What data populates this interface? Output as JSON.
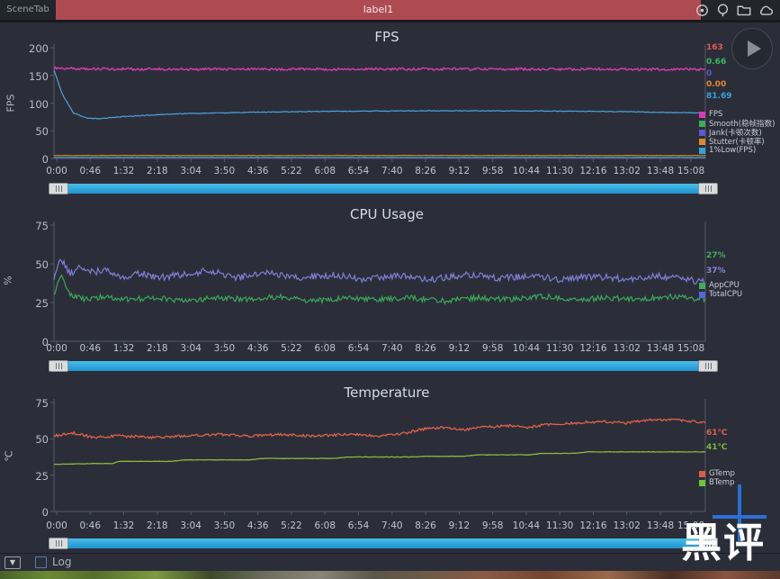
{
  "topbar": {
    "tab": "SceneTab",
    "scene_label": "label1",
    "icons": [
      "map-pin-icon",
      "location-icon",
      "folder-icon",
      "cloud-icon"
    ]
  },
  "colors": {
    "background": "#2b2e39",
    "accent_red": "#ad4a52",
    "scrollbar_blue": "#2aa2d8"
  },
  "chart_data": [
    {
      "type": "line",
      "title": "FPS",
      "ylabel": "FPS",
      "ylim": [
        0,
        200
      ],
      "ymax": 200,
      "yticks": [
        200,
        150,
        100,
        50,
        0
      ],
      "xticks": [
        "0:00",
        "0:46",
        "1:32",
        "2:18",
        "3:04",
        "3:50",
        "4:36",
        "5:22",
        "6:08",
        "6:54",
        "7:40",
        "8:26",
        "9:12",
        "9:58",
        "10:44",
        "11:30",
        "12:16",
        "13:02",
        "13:48"
      ],
      "xtick_end": "15:08",
      "legend_position": "right",
      "values": [
        {
          "text": "163",
          "color": "#e05a54"
        },
        {
          "text": "0.66",
          "color": "#3cb860"
        },
        {
          "text": "0",
          "color": "#5a58d8"
        },
        {
          "text": "0.00",
          "color": "#e08830"
        },
        {
          "text": "81.69",
          "color": "#38a0d8"
        }
      ],
      "legend": [
        {
          "label": "FPS",
          "color": "#d93cb5"
        },
        {
          "label": "Smooth(稳帧指数)",
          "color": "#3cb054"
        },
        {
          "label": "Jank(卡顿次数)",
          "color": "#5a58d8"
        },
        {
          "label": "Stutter(卡顿率)",
          "color": "#e08830"
        },
        {
          "label": "1%Low(FPS)",
          "color": "#38a0d8"
        }
      ],
      "series": [
        {
          "name": "Smooth",
          "color": "#3cb054",
          "width": 1.0,
          "jitter": 0.3,
          "points": [
            [
              0,
              2.5
            ],
            [
              1,
              2.5
            ]
          ]
        },
        {
          "name": "Jank",
          "color": "#5a58d8",
          "width": 1.0,
          "jitter": 0.2,
          "points": [
            [
              0,
              1
            ],
            [
              1,
              1
            ]
          ]
        },
        {
          "name": "Stutter",
          "color": "#e08830",
          "width": 1.0,
          "jitter": 0.4,
          "points": [
            [
              0,
              5.5
            ],
            [
              1,
              5.5
            ]
          ]
        },
        {
          "name": "1%Low",
          "color": "#4aa4e0",
          "width": 1.2,
          "jitter": 0.6,
          "points": [
            [
              0,
              160
            ],
            [
              0.012,
              118
            ],
            [
              0.03,
              82
            ],
            [
              0.05,
              73
            ],
            [
              0.07,
              72
            ],
            [
              0.1,
              75
            ],
            [
              0.14,
              78
            ],
            [
              0.2,
              81
            ],
            [
              0.28,
              83
            ],
            [
              0.4,
              85
            ],
            [
              0.55,
              86
            ],
            [
              0.7,
              86
            ],
            [
              0.85,
              85
            ],
            [
              1,
              82
            ]
          ]
        },
        {
          "name": "FPS",
          "color": "#d93cb5",
          "width": 1.4,
          "jitter": 2.2,
          "points": [
            [
              0,
              163
            ],
            [
              0.05,
              161.5
            ],
            [
              0.3,
              161
            ],
            [
              0.6,
              161.5
            ],
            [
              1,
              161
            ]
          ]
        }
      ]
    },
    {
      "type": "line",
      "title": "CPU Usage",
      "ylabel": "%",
      "ylim": [
        0,
        75
      ],
      "ymax": 75,
      "yticks": [
        75,
        50,
        25,
        0
      ],
      "xticks": [
        "0:00",
        "0:46",
        "1:32",
        "2:18",
        "3:04",
        "3:50",
        "4:36",
        "5:22",
        "6:08",
        "6:54",
        "7:40",
        "8:26",
        "9:12",
        "9:58",
        "10:44",
        "11:30",
        "12:16",
        "13:02",
        "13:48"
      ],
      "xtick_end": "15:08",
      "legend_position": "right",
      "values": [
        {
          "text": "27%",
          "color": "#3db05c"
        },
        {
          "text": "37%",
          "color": "#8884d8"
        }
      ],
      "legend": [
        {
          "label": "AppCPU",
          "color": "#3cb054"
        },
        {
          "label": "TotalCPU",
          "color": "#5568d8"
        }
      ],
      "series": [
        {
          "name": "TotalCPU",
          "color": "#7f7fd6",
          "width": 1.2,
          "jitter": 2.2,
          "points": [
            [
              0,
              40
            ],
            [
              0.01,
              54
            ],
            [
              0.025,
              43
            ],
            [
              0.04,
              49
            ],
            [
              0.06,
              44
            ],
            [
              0.08,
              47
            ],
            [
              0.1,
              41
            ],
            [
              0.13,
              44
            ],
            [
              0.16,
              41
            ],
            [
              0.2,
              43
            ],
            [
              0.24,
              46
            ],
            [
              0.28,
              41
            ],
            [
              0.33,
              44
            ],
            [
              0.38,
              41
            ],
            [
              0.43,
              43
            ],
            [
              0.48,
              40
            ],
            [
              0.53,
              42
            ],
            [
              0.58,
              40
            ],
            [
              0.63,
              43
            ],
            [
              0.68,
              41
            ],
            [
              0.73,
              42
            ],
            [
              0.78,
              40
            ],
            [
              0.83,
              42
            ],
            [
              0.88,
              40
            ],
            [
              0.93,
              42
            ],
            [
              1,
              38
            ]
          ]
        },
        {
          "name": "AppCPU",
          "color": "#3aa85a",
          "width": 1.2,
          "jitter": 1.8,
          "points": [
            [
              0,
              30
            ],
            [
              0.01,
              43
            ],
            [
              0.025,
              30
            ],
            [
              0.05,
              27
            ],
            [
              0.08,
              29
            ],
            [
              0.12,
              27
            ],
            [
              0.16,
              28
            ],
            [
              0.2,
              26
            ],
            [
              0.25,
              28
            ],
            [
              0.3,
              27
            ],
            [
              0.35,
              29
            ],
            [
              0.4,
              26
            ],
            [
              0.45,
              28
            ],
            [
              0.5,
              27
            ],
            [
              0.55,
              28
            ],
            [
              0.6,
              26
            ],
            [
              0.65,
              28
            ],
            [
              0.7,
              27
            ],
            [
              0.75,
              29
            ],
            [
              0.8,
              27
            ],
            [
              0.85,
              28
            ],
            [
              0.9,
              27
            ],
            [
              0.95,
              29
            ],
            [
              1,
              27
            ]
          ]
        }
      ]
    },
    {
      "type": "line",
      "title": "Temperature",
      "ylabel": "℃",
      "ylim": [
        0,
        75
      ],
      "ymax": 75,
      "yticks": [
        75,
        50,
        25,
        0
      ],
      "xticks": [
        "0:00",
        "0:46",
        "1:32",
        "2:18",
        "3:04",
        "3:50",
        "4:36",
        "5:22",
        "6:08",
        "6:54",
        "7:40",
        "8:26",
        "9:12",
        "9:58",
        "10:44",
        "11:30",
        "12:16",
        "13:02",
        "13:48"
      ],
      "xtick_end": "15:08",
      "legend_position": "right",
      "values": [
        {
          "text": "61℃",
          "color": "#e2604a"
        },
        {
          "text": "41℃",
          "color": "#7cb83c"
        }
      ],
      "legend": [
        {
          "label": "GTemp",
          "color": "#e05a48"
        },
        {
          "label": "BTemp",
          "color": "#6cc832"
        }
      ],
      "series": [
        {
          "name": "GTemp",
          "color": "#e0614c",
          "width": 1.3,
          "jitter": 0.9,
          "points": [
            [
              0,
              52
            ],
            [
              0.03,
              54
            ],
            [
              0.06,
              51
            ],
            [
              0.1,
              52
            ],
            [
              0.15,
              51
            ],
            [
              0.2,
              52
            ],
            [
              0.25,
              53
            ],
            [
              0.3,
              52
            ],
            [
              0.35,
              53
            ],
            [
              0.4,
              52
            ],
            [
              0.45,
              53
            ],
            [
              0.5,
              52
            ],
            [
              0.54,
              54
            ],
            [
              0.57,
              57
            ],
            [
              0.6,
              58
            ],
            [
              0.63,
              56
            ],
            [
              0.66,
              58
            ],
            [
              0.7,
              59
            ],
            [
              0.73,
              58
            ],
            [
              0.76,
              60
            ],
            [
              0.8,
              61
            ],
            [
              0.84,
              62
            ],
            [
              0.88,
              61
            ],
            [
              0.92,
              63
            ],
            [
              0.96,
              63
            ],
            [
              1,
              61
            ]
          ]
        },
        {
          "name": "BTemp",
          "color": "#8ab93c",
          "width": 1.3,
          "jitter": 0.12,
          "points": [
            [
              0,
              32.5
            ],
            [
              0.07,
              33
            ],
            [
              0.09,
              33
            ],
            [
              0.1,
              34.5
            ],
            [
              0.18,
              34.5
            ],
            [
              0.2,
              35.5
            ],
            [
              0.3,
              35.5
            ],
            [
              0.32,
              36.5
            ],
            [
              0.43,
              36.5
            ],
            [
              0.45,
              37.5
            ],
            [
              0.55,
              37.5
            ],
            [
              0.57,
              38
            ],
            [
              0.63,
              38
            ],
            [
              0.65,
              39
            ],
            [
              0.73,
              39
            ],
            [
              0.75,
              40
            ],
            [
              0.8,
              40
            ],
            [
              0.82,
              41
            ],
            [
              1,
              41
            ]
          ]
        }
      ]
    }
  ],
  "bottom": {
    "log_label": "Log"
  },
  "watermark": {
    "text": "黑评"
  }
}
